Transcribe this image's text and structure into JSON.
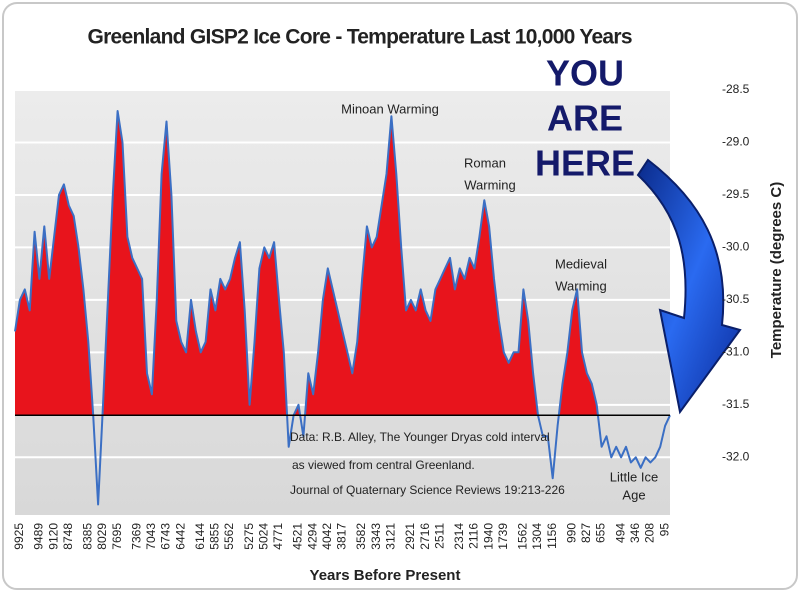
{
  "chart_data": {
    "type": "area",
    "title": "Greenland GISP2 Ice Core - Temperature  Last 10,000 Years",
    "x_label": "Years Before Present",
    "y_label": "Temperature (degrees C)",
    "categories": [
      null,
      "9925",
      null,
      null,
      null,
      "9489",
      null,
      null,
      "9120",
      null,
      null,
      "8748",
      null,
      null,
      null,
      "8385",
      null,
      null,
      "8029",
      null,
      null,
      "7695",
      null,
      null,
      null,
      "7369",
      null,
      null,
      "7043",
      null,
      null,
      "6743",
      null,
      null,
      "6442",
      null,
      null,
      null,
      "6144",
      null,
      null,
      "5855",
      null,
      null,
      "5562",
      null,
      null,
      null,
      "5275",
      null,
      null,
      "5024",
      null,
      null,
      "4771",
      null,
      null,
      null,
      "4521",
      null,
      null,
      "4294",
      null,
      null,
      "4042",
      null,
      null,
      "3817",
      null,
      null,
      null,
      "3582",
      null,
      null,
      "3343",
      null,
      null,
      "3121",
      null,
      null,
      null,
      "2921",
      null,
      null,
      "2716",
      null,
      null,
      "2511",
      null,
      null,
      null,
      "2314",
      null,
      null,
      "2116",
      null,
      null,
      "1940",
      null,
      null,
      "1739",
      null,
      null,
      null,
      "1562",
      null,
      null,
      "1304",
      null,
      null,
      "1156",
      null,
      null,
      null,
      "990",
      null,
      null,
      "827",
      null,
      null,
      "655",
      null,
      null,
      null,
      "494",
      null,
      null,
      "346",
      null,
      null,
      "208",
      null,
      null,
      "95",
      null
    ],
    "values": [
      -30.8,
      -30.5,
      -30.4,
      -30.6,
      -29.85,
      -30.3,
      -29.8,
      -30.3,
      -29.9,
      -29.5,
      -29.4,
      -29.6,
      -29.7,
      -30.0,
      -30.4,
      -30.9,
      -31.6,
      -32.45,
      -31.5,
      -30.5,
      -29.5,
      -28.7,
      -29.0,
      -29.9,
      -30.1,
      -30.2,
      -30.3,
      -31.2,
      -31.4,
      -30.5,
      -29.3,
      -28.8,
      -29.5,
      -30.7,
      -30.9,
      -31.0,
      -30.5,
      -30.8,
      -31.0,
      -30.9,
      -30.4,
      -30.6,
      -30.3,
      -30.4,
      -30.3,
      -30.1,
      -29.95,
      -30.6,
      -31.5,
      -30.9,
      -30.2,
      -30.0,
      -30.1,
      -29.95,
      -30.5,
      -31.0,
      -31.9,
      -31.6,
      -31.5,
      -31.8,
      -31.2,
      -31.4,
      -31.0,
      -30.5,
      -30.2,
      -30.4,
      -30.6,
      -30.8,
      -31.0,
      -31.2,
      -30.9,
      -30.3,
      -29.8,
      -30.0,
      -29.9,
      -29.6,
      -29.3,
      -28.75,
      -29.3,
      -30.0,
      -30.6,
      -30.5,
      -30.6,
      -30.4,
      -30.6,
      -30.7,
      -30.4,
      -30.3,
      -30.2,
      -30.1,
      -30.4,
      -30.2,
      -30.3,
      -30.1,
      -30.2,
      -29.9,
      -29.55,
      -29.8,
      -30.3,
      -30.7,
      -31.0,
      -31.1,
      -31.0,
      -31.0,
      -30.4,
      -30.7,
      -31.2,
      -31.6,
      -31.8,
      -31.8,
      -32.2,
      -31.7,
      -31.3,
      -31.0,
      -30.6,
      -30.4,
      -31.0,
      -31.2,
      -31.3,
      -31.5,
      -31.9,
      -31.8,
      -32.0,
      -31.9,
      -32.0,
      -31.9,
      -32.05,
      -32.0,
      -32.1,
      -32.0,
      -32.05,
      -32.0,
      -31.9,
      -31.7,
      -31.6
    ],
    "reference_line": -31.6,
    "color": "#e8141c",
    "line_color": "#3b6fc4",
    "below_color": "#4a7fd0",
    "ylim": [
      -32.55,
      -28.5
    ],
    "yticks": [
      -28.5,
      {
        "value": -29,
        "label": "-29.0"
      },
      -29.5,
      {
        "value": -30,
        "label": "-30.0"
      },
      -30.5,
      {
        "value": -31,
        "label": "-31.0"
      },
      -31.5,
      {
        "value": -32,
        "label": "-32.0"
      }
    ],
    "grid": true,
    "annotations": {
      "minoan": "Minoan Warming",
      "roman": [
        "Roman",
        "Warming"
      ],
      "medieval": [
        "Medieval",
        "Warming"
      ],
      "little_ice_age": [
        "Little Ice",
        "Age"
      ],
      "source": [
        "Data: R.B. Alley,  The Younger Dryas cold interval",
        "as viewed from central Greenland.",
        "Journal of Quaternary  Science Reviews 19:213-226"
      ],
      "you_are_here": [
        "YOU",
        "ARE",
        "HERE"
      ]
    }
  }
}
